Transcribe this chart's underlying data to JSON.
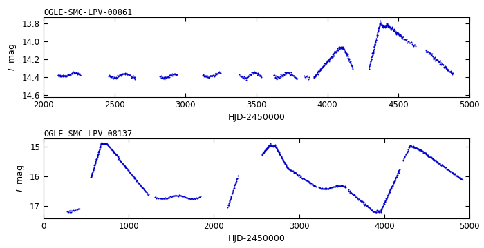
{
  "title1": "OGLE-SMC-LPV-00861",
  "title2": "OGLE-SMC-LPV-08137",
  "xlabel": "HJD-2450000",
  "ylabel": "I  mag",
  "dot_color": "#0000cc",
  "dot_size": 2.0,
  "panel1": {
    "xlim": [
      2000,
      5000
    ],
    "ylim": [
      14.62,
      13.73
    ],
    "xticks": [
      2000,
      2500,
      3000,
      3500,
      4000,
      4500,
      5000
    ],
    "yticks": [
      13.8,
      14.0,
      14.2,
      14.4,
      14.6
    ]
  },
  "panel2": {
    "xlim": [
      0,
      5000
    ],
    "ylim": [
      17.42,
      14.72
    ],
    "xticks": [
      0,
      1000,
      2000,
      3000,
      4000,
      5000
    ],
    "yticks": [
      15.0,
      16.0,
      17.0
    ]
  }
}
